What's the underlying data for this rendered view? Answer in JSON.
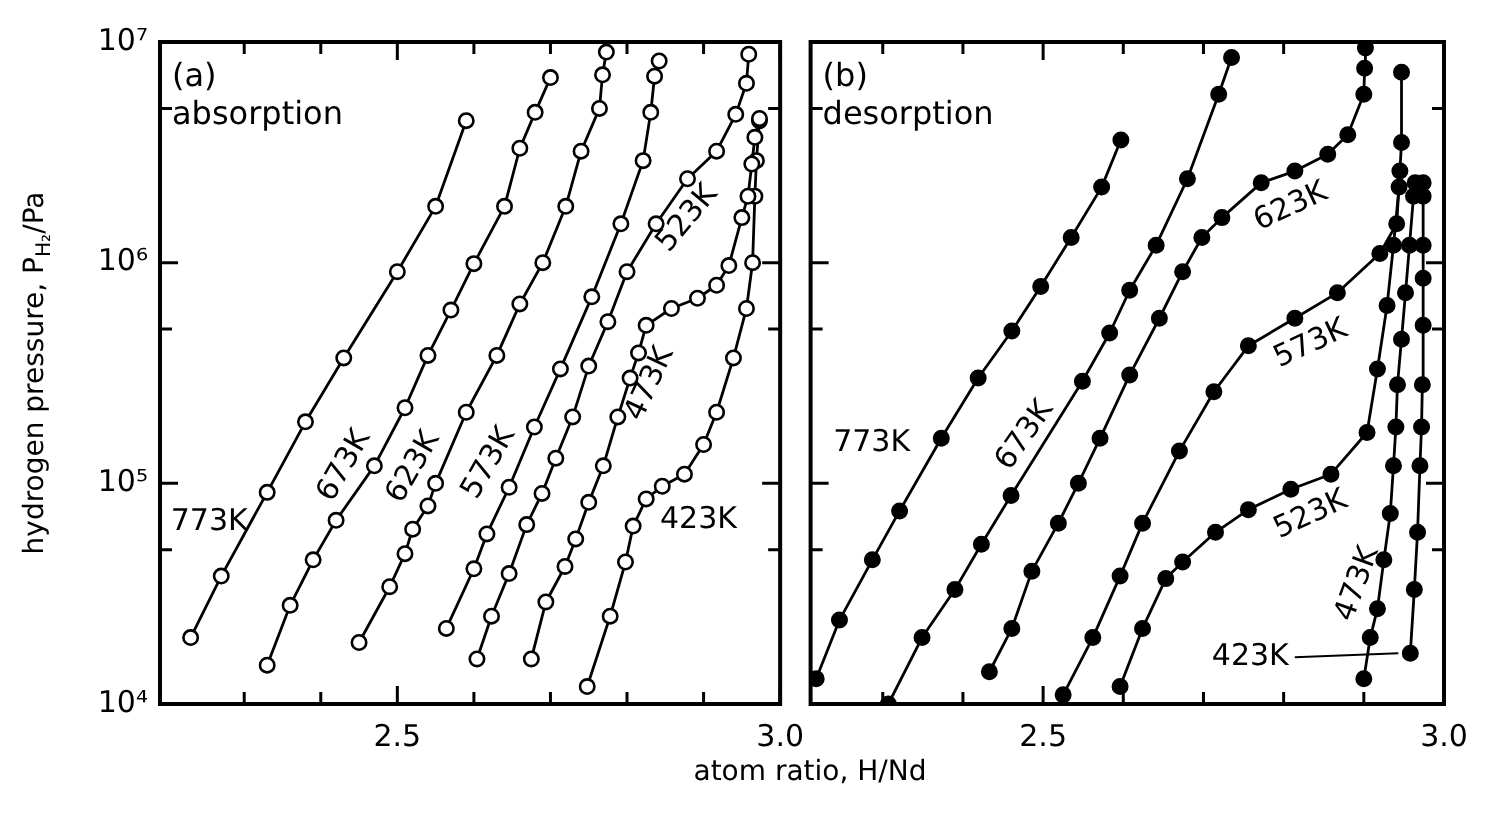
{
  "chart_data": [
    {
      "type": "line",
      "title": "(a)",
      "subtitle": "absorption",
      "xlabel": "atom ratio, H/Nd",
      "ylabel": "hydrogen pressure, P$_{H₂}$/Pa",
      "log": "y",
      "marker": "circle",
      "xlim": [
        2.19,
        3.0
      ],
      "ylim": [
        10000,
        10000000
      ],
      "xticks": [
        {
          "value": 2.3,
          "label": null
        },
        {
          "value": 2.4,
          "label": null
        },
        2.5,
        {
          "value": 2.6,
          "label": null
        },
        {
          "value": 2.7,
          "label": null
        },
        {
          "value": 2.8,
          "label": null
        },
        {
          "value": 2.9,
          "label": null
        },
        {
          "value": 3.0,
          "label": "3.0"
        }
      ],
      "yticks": [
        {
          "value": 10000,
          "label": "10⁴"
        },
        {
          "value": 50000,
          "label": null
        },
        {
          "value": 100000,
          "label": "10⁵"
        },
        {
          "value": 500000,
          "label": null
        },
        {
          "value": 1000000,
          "label": "10⁶"
        },
        {
          "value": 5000000,
          "label": null
        },
        {
          "value": 10000000,
          "label": "10⁷"
        }
      ],
      "series": [
        {
          "name": "773K",
          "color": "#000000",
          "x": [
            2.23,
            2.27,
            2.33,
            2.38,
            2.43,
            2.5,
            2.55,
            2.59
          ],
          "values": [
            20000,
            38000,
            91000,
            190000,
            370000,
            910000,
            1800000,
            4400000
          ]
        },
        {
          "name": "673K",
          "color": "#000000",
          "x": [
            2.33,
            2.36,
            2.39,
            2.42,
            2.47,
            2.51,
            2.54,
            2.57,
            2.6,
            2.64,
            2.66,
            2.68,
            2.7
          ],
          "values": [
            15000,
            28000,
            45000,
            68000,
            120000,
            220000,
            380000,
            610000,
            990000,
            1800000,
            3300000,
            4800000,
            6900000
          ]
        },
        {
          "name": "623K",
          "color": "#000000",
          "x": [
            2.45,
            2.49,
            2.51,
            2.52,
            2.54,
            2.55,
            2.59,
            2.63,
            2.66,
            2.69,
            2.72,
            2.74,
            2.764,
            2.768,
            2.773
          ],
          "values": [
            19000,
            34000,
            48000,
            62000,
            79000,
            100000,
            210000,
            380000,
            650000,
            1000000,
            1800000,
            3200000,
            5000000,
            7100000,
            9000000
          ]
        },
        {
          "name": "573K",
          "color": "#000000",
          "x": [
            2.564,
            2.6,
            2.617,
            2.646,
            2.679,
            2.713,
            2.754,
            2.792,
            2.821,
            2.831,
            2.836,
            2.842
          ],
          "values": [
            22000,
            41000,
            59000,
            96000,
            180000,
            330000,
            700000,
            1500000,
            2900000,
            4800000,
            7000000,
            8200000
          ]
        },
        {
          "name": "523K",
          "color": "#000000",
          "x": [
            2.604,
            2.623,
            2.646,
            2.669,
            2.689,
            2.707,
            2.729,
            2.75,
            2.775,
            2.8,
            2.838,
            2.879,
            2.917,
            2.942,
            2.956,
            2.959
          ],
          "values": [
            16000,
            25000,
            39000,
            65000,
            90000,
            130000,
            200000,
            340000,
            540000,
            910000,
            1500000,
            2400000,
            3200000,
            4700000,
            6500000,
            8800000
          ]
        },
        {
          "name": "473K",
          "color": "#000000",
          "x": [
            2.675,
            2.694,
            2.719,
            2.733,
            2.75,
            2.769,
            2.788,
            2.804,
            2.815,
            2.825,
            2.858,
            2.892,
            2.917,
            2.933,
            2.95,
            2.958,
            2.963,
            2.967,
            2.973
          ],
          "values": [
            16000,
            29000,
            42000,
            56000,
            82000,
            120000,
            200000,
            300000,
            390000,
            520000,
            620000,
            690000,
            790000,
            970000,
            1600000,
            2000000,
            2800000,
            3700000,
            4500000
          ]
        },
        {
          "name": "423K",
          "color": "#000000",
          "x": [
            2.748,
            2.778,
            2.798,
            2.808,
            2.825,
            2.846,
            2.875,
            2.9,
            2.917,
            2.939,
            2.956,
            2.964,
            2.967,
            2.969,
            2.973
          ],
          "values": [
            12000,
            25000,
            44000,
            64000,
            85000,
            97000,
            110000,
            150000,
            210000,
            370000,
            620000,
            1000000,
            2000000,
            2900000,
            4400000
          ]
        }
      ]
    },
    {
      "type": "line",
      "title": "(b)",
      "subtitle": "desorption",
      "log": "y",
      "marker": "circle",
      "tick_labels": "x",
      "xlim": [
        2.21,
        3.0
      ],
      "ylim": [
        10000,
        10000000
      ],
      "xticks": [
        {
          "value": 2.3,
          "label": null
        },
        {
          "value": 2.4,
          "label": null
        },
        2.5,
        {
          "value": 2.6,
          "label": null
        },
        {
          "value": 2.7,
          "label": null
        },
        {
          "value": 2.8,
          "label": null
        },
        {
          "value": 2.9,
          "label": null
        },
        {
          "value": 3.0,
          "label": "3.0"
        }
      ],
      "yticks": [
        {
          "value": 10000,
          "label": null
        },
        {
          "value": 50000,
          "label": null
        },
        {
          "value": 100000,
          "label": null
        },
        {
          "value": 500000,
          "label": null
        },
        {
          "value": 1000000,
          "label": null
        },
        {
          "value": 5000000,
          "label": null
        },
        {
          "value": 10000000,
          "label": null
        }
      ],
      "series": [
        {
          "name": "773K",
          "color": "#000000",
          "x": [
            2.217,
            2.246,
            2.287,
            2.321,
            2.373,
            2.419,
            2.461,
            2.497,
            2.535,
            2.573,
            2.597
          ],
          "values": [
            13000,
            24000,
            45000,
            75000,
            160000,
            300000,
            490000,
            780000,
            1300000,
            2200000,
            3600000
          ]
        },
        {
          "name": "673K",
          "color": "#000000",
          "x": [
            2.307,
            2.349,
            2.39,
            2.423,
            2.46,
            2.549,
            2.583,
            2.608,
            2.641,
            2.68,
            2.719,
            2.735
          ],
          "values": [
            10000,
            20000,
            33000,
            53000,
            88000,
            290000,
            480000,
            750000,
            1200000,
            2400000,
            5800000,
            8500000
          ]
        },
        {
          "name": "623K",
          "color": "#000000",
          "x": [
            2.433,
            2.461,
            2.486,
            2.519,
            2.544,
            2.571,
            2.608,
            2.645,
            2.674,
            2.698,
            2.723,
            2.772,
            2.814,
            2.855,
            2.88,
            2.9,
            2.901,
            2.902
          ],
          "values": [
            14000,
            22000,
            40000,
            66000,
            100000,
            160000,
            310000,
            560000,
            910000,
            1300000,
            1600000,
            2300000,
            2600000,
            3100000,
            3800000,
            5800000,
            7600000,
            9400000
          ]
        },
        {
          "name": "573K",
          "color": "#000000",
          "x": [
            2.525,
            2.562,
            2.596,
            2.624,
            2.67,
            2.713,
            2.756,
            2.814,
            2.867,
            2.92,
            2.941,
            2.945,
            2.947,
            2.947
          ],
          "values": [
            11000,
            20000,
            38000,
            66000,
            140000,
            260000,
            420000,
            560000,
            730000,
            1100000,
            1500000,
            2600000,
            3500000,
            7300000
          ]
        },
        {
          "name": "523K",
          "color": "#000000",
          "x": [
            2.596,
            2.624,
            2.653,
            2.674,
            2.715,
            2.756,
            2.809,
            2.859,
            2.904,
            2.917,
            2.929,
            2.937,
            2.944
          ],
          "values": [
            12000,
            22000,
            37000,
            44000,
            60000,
            76000,
            94000,
            110000,
            170000,
            330000,
            640000,
            1200000,
            2200000
          ]
        },
        {
          "name": "473K",
          "color": "#000000",
          "x": [
            2.9,
            2.908,
            2.917,
            2.925,
            2.933,
            2.937,
            2.94,
            2.942,
            2.947,
            2.952,
            2.957,
            2.962,
            2.964
          ],
          "values": [
            13000,
            20000,
            27000,
            45000,
            73000,
            120000,
            180000,
            280000,
            450000,
            730000,
            1200000,
            2000000,
            2300000
          ]
        },
        {
          "name": "423K",
          "color": "#000000",
          "x": [
            2.958,
            2.963,
            2.967,
            2.97,
            2.972,
            2.973,
            2.974,
            2.974,
            2.974,
            2.974,
            2.974
          ],
          "values": [
            17000,
            33000,
            60000,
            120000,
            180000,
            280000,
            520000,
            850000,
            1200000,
            2000000,
            2300000
          ]
        }
      ]
    }
  ]
}
